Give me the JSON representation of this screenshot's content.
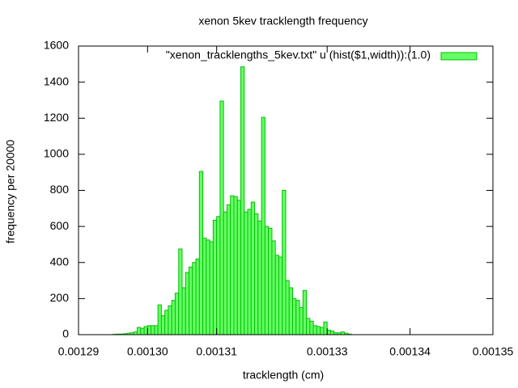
{
  "chart_data": {
    "type": "histogram",
    "title": "xenon 5kev tracklength frequency",
    "xlabel": "tracklength (cm)",
    "ylabel": "frequency per 20000",
    "legend": "\"xenon_tracklengths_5kev.txt\" u (hist($1,width)):(1.0)",
    "legend_position": "top-right",
    "color": "#66ff66",
    "edge_color": "#00c000",
    "bins": [
      0.001295,
      0.0012955,
      0.001296,
      0.0012965,
      0.001297,
      0.0012975,
      0.001298,
      0.0012985,
      0.001299,
      0.0012995,
      0.0013,
      0.0013005,
      0.001301,
      0.0013015,
      0.001302,
      0.0013025,
      0.001303,
      0.0013035,
      0.001304,
      0.0013045,
      0.001305,
      0.0013055,
      0.001306,
      0.0013065,
      0.001307,
      0.0013075,
      0.001308,
      0.0013085,
      0.001309,
      0.0013095,
      0.00131,
      0.0013105,
      0.001311,
      0.0013115,
      0.001312,
      0.0013125,
      0.001313,
      0.0013135,
      0.001314,
      0.0013145,
      0.001315,
      0.0013155,
      0.001316,
      0.0013165,
      0.001317,
      0.0013175,
      0.001318,
      0.0013185,
      0.001319,
      0.0013195,
      0.00132,
      0.0013205,
      0.001321,
      0.0013215,
      0.001322,
      0.0013225,
      0.001323,
      0.0013235,
      0.001324,
      0.0013245,
      0.001325,
      0.0013255,
      0.001326,
      0.0013265,
      0.001327,
      0.0013275,
      0.001328,
      0.0013285,
      0.001329,
      0.0013295
    ],
    "counts": [
      2,
      3,
      3,
      5,
      8,
      10,
      15,
      40,
      35,
      45,
      50,
      50,
      50,
      165,
      105,
      135,
      160,
      190,
      230,
      475,
      260,
      345,
      375,
      400,
      420,
      905,
      535,
      525,
      515,
      635,
      655,
      1295,
      680,
      720,
      770,
      765,
      745,
      1485,
      680,
      695,
      735,
      670,
      630,
      1205,
      600,
      590,
      520,
      440,
      430,
      800,
      300,
      260,
      200,
      190,
      150,
      245,
      90,
      75,
      50,
      45,
      40,
      70,
      25,
      20,
      10,
      10,
      15,
      8,
      3
    ],
    "xlim": [
      0.00129,
      0.00135
    ],
    "xticks": [
      {
        "value": 0.00129,
        "label": "0.00129"
      },
      {
        "value": 0.0013,
        "label": "0.00130"
      },
      {
        "value": 0.00131,
        "label": "0.00131"
      },
      {
        "value": 0.001326,
        "label": "0.00133"
      },
      {
        "value": 0.001338,
        "label": "0.00134"
      },
      {
        "value": 0.00135,
        "label": "0.00135"
      }
    ],
    "ylim": [
      0,
      1600
    ],
    "yticks": [
      0,
      200,
      400,
      600,
      800,
      1000,
      1200,
      1400,
      1600
    ],
    "grid": false
  }
}
